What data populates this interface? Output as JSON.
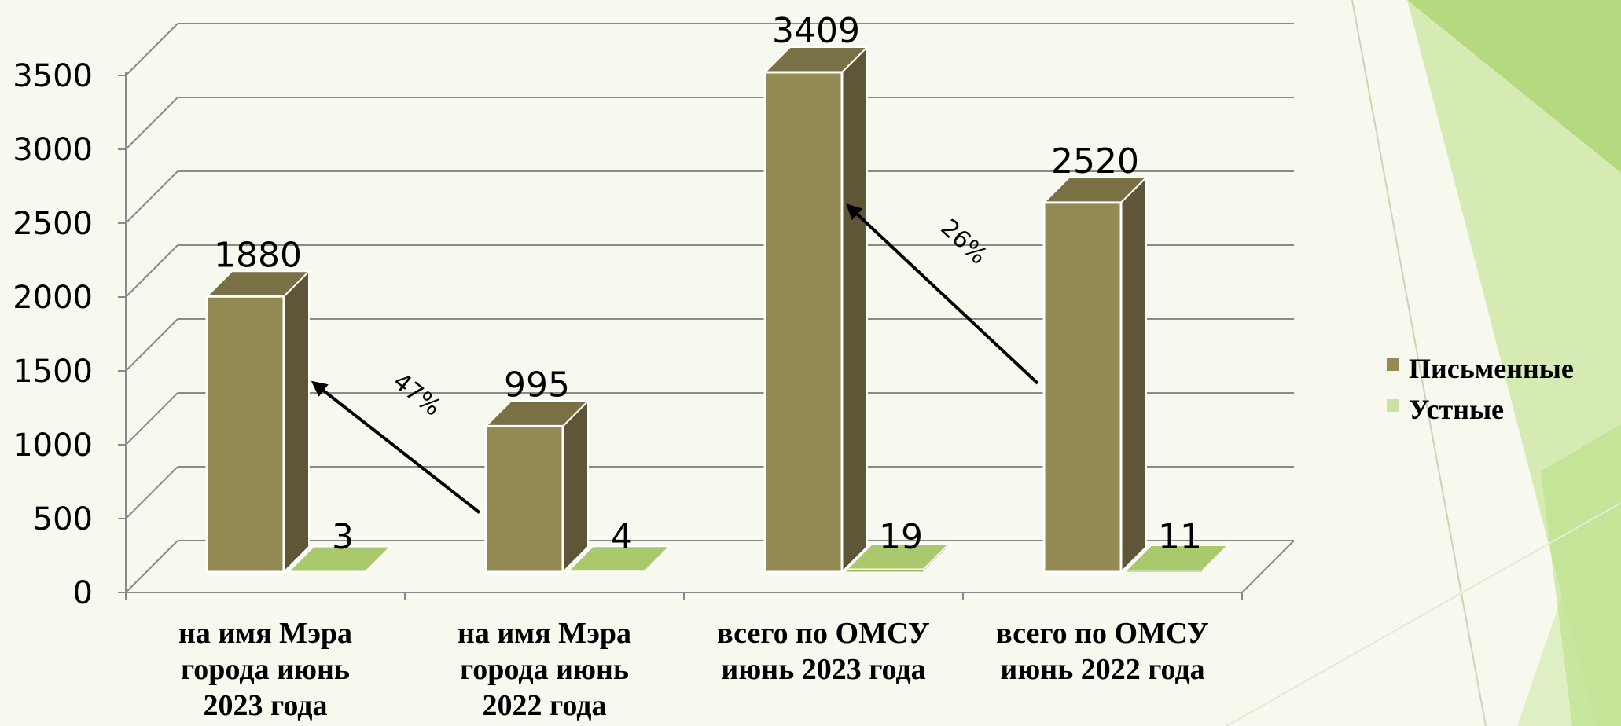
{
  "chart_data": {
    "type": "bar",
    "categories": [
      [
        "на имя Мэра",
        "города июнь",
        "2023 года"
      ],
      [
        "на имя Мэра",
        "города июнь",
        "2022 года"
      ],
      [
        "всего по ОМСУ",
        "июнь 2023 года"
      ],
      [
        "всего по ОМСУ",
        "июнь 2022 года"
      ]
    ],
    "series": [
      {
        "name": "Письменные",
        "values": [
          1880,
          995,
          3409,
          2520
        ],
        "color": "#948a54"
      },
      {
        "name": "Устные",
        "values": [
          3,
          4,
          19,
          11
        ],
        "color": "#9bbb59"
      }
    ],
    "y_ticks": [
      "0",
      "500",
      "1000",
      "1500",
      "2000",
      "2500",
      "3000",
      "3500"
    ],
    "ylim": [
      0,
      3500
    ],
    "grid": true,
    "legend_position": "right",
    "annotations": [
      {
        "text": "47%",
        "from_category": 1,
        "to_category": 0
      },
      {
        "text": "26%",
        "from_category": 3,
        "to_category": 2
      }
    ],
    "colors": {
      "background": "#f7f9ee",
      "accent_green": "#92d050",
      "bar_front": "#948a54",
      "bar_side": "#5f5638",
      "bar_top": "#7a7045",
      "ustnye": "#9bbb59"
    }
  }
}
